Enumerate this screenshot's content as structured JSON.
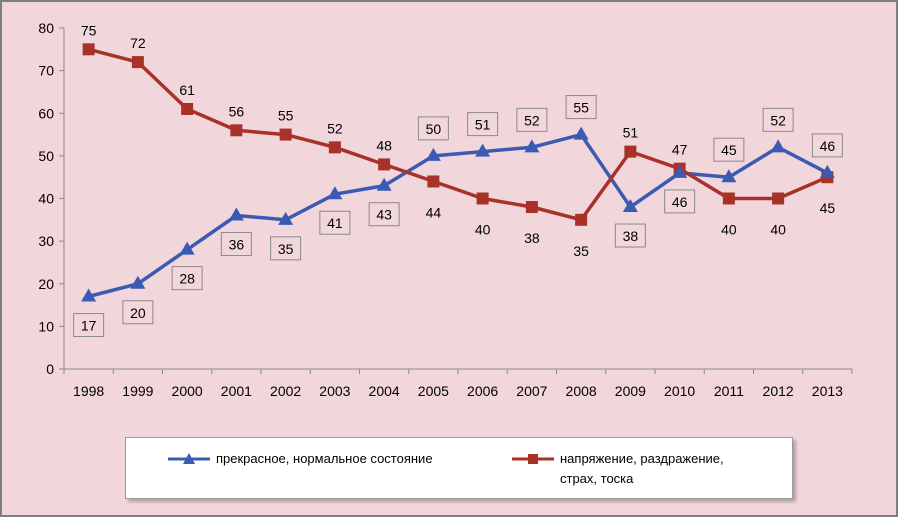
{
  "colors": {
    "blue": "#3b5bb3",
    "red": "#a83228",
    "grid": "#8c8c8c",
    "background": "#f1d6dc"
  },
  "legend": {
    "series_1": "прекрасное, нормальное состояние",
    "series_2_line1": "напряжение, раздражение,",
    "series_2_line2": "страх, тоска"
  },
  "chart_data": {
    "type": "line",
    "categories": [
      "1998",
      "1999",
      "2000",
      "2001",
      "2002",
      "2003",
      "2004",
      "2005",
      "2006",
      "2007",
      "2008",
      "2009",
      "2010",
      "2011",
      "2012",
      "2013"
    ],
    "ylim": [
      0,
      80
    ],
    "yticks": [
      0,
      10,
      20,
      30,
      40,
      50,
      60,
      70,
      80
    ],
    "grid": false,
    "legend_position": "bottom",
    "series": [
      {
        "name": "прекрасное, нормальное состояние",
        "marker": "triangle",
        "color": "#3b5bb3",
        "values": [
          17,
          20,
          28,
          36,
          35,
          41,
          43,
          50,
          51,
          52,
          55,
          38,
          46,
          45,
          52,
          46
        ],
        "boxed_labels": true
      },
      {
        "name": "напряжение, раздражение, страх, тоска",
        "marker": "square",
        "color": "#a83228",
        "values": [
          75,
          72,
          61,
          56,
          55,
          52,
          48,
          44,
          40,
          38,
          35,
          51,
          47,
          40,
          40,
          45
        ],
        "boxed_labels": false
      }
    ]
  }
}
